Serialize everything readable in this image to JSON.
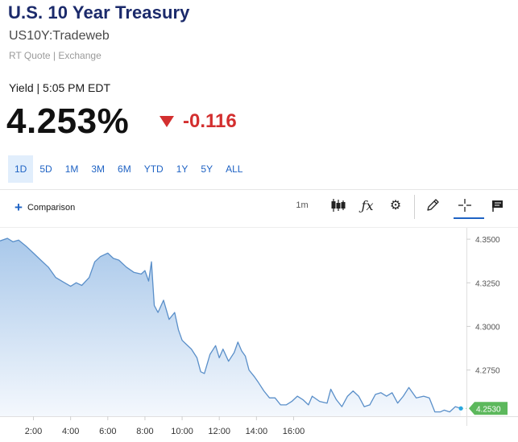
{
  "header": {
    "title": "U.S. 10 Year Treasury",
    "symbol": "US10Y:Tradeweb",
    "quote_source": "RT Quote | Exchange"
  },
  "quote": {
    "label": "Yield | 5:05 PM EDT",
    "value": "4.253%",
    "change": "-0.116",
    "direction": "down",
    "change_color": "#d32f2f"
  },
  "ranges": {
    "items": [
      "1D",
      "5D",
      "1M",
      "3M",
      "6M",
      "YTD",
      "1Y",
      "5Y",
      "ALL"
    ],
    "active": "1D"
  },
  "toolbar": {
    "comparison_label": "Comparison",
    "interval_label": "1m",
    "icons": [
      "candlestick-icon",
      "fx-icon",
      "gear-icon",
      "pencil-icon",
      "crosshair-icon",
      "annotation-flag-icon"
    ]
  },
  "chart_data": {
    "type": "area",
    "x_ticks": [
      "2:00",
      "4:00",
      "6:00",
      "8:00",
      "10:00",
      "12:00",
      "14:00",
      "16:00"
    ],
    "y_ticks": [
      "4.3500",
      "4.3250",
      "4.3000",
      "4.2750"
    ],
    "ylim": [
      4.2485,
      4.3565
    ],
    "xlim": [
      0.2,
      25.3
    ],
    "last_value_label": "4.2530",
    "last_value": 4.253,
    "colors": {
      "line": "#5a8fc9",
      "fill_top": "#a9c8ea",
      "fill_bottom": "#f4f8fd",
      "price_tag": "#5cb85c",
      "last_dot": "#2aa8e0"
    },
    "series": [
      {
        "x": [
          0.2,
          0.6,
          0.9,
          1.2,
          1.6,
          2.0,
          2.4,
          2.8,
          3.2,
          3.6,
          4.0,
          4.3,
          4.6,
          5.0,
          5.3,
          5.6,
          6.0,
          6.3,
          6.6,
          7.0,
          7.4,
          7.8,
          8.0,
          8.2,
          8.35,
          8.5,
          8.7,
          9.0,
          9.3,
          9.6,
          9.8,
          10.0,
          10.2,
          10.5,
          10.8,
          11.0,
          11.2,
          11.5,
          11.8,
          12.0,
          12.2,
          12.5,
          12.8,
          13.0,
          13.2,
          13.4,
          13.6,
          13.9,
          14.1,
          14.4,
          14.7,
          15.0,
          15.3,
          15.6,
          15.9,
          16.2,
          16.5,
          16.8,
          17.0,
          17.4,
          17.8,
          18.0,
          18.3,
          18.6,
          18.9,
          19.2,
          19.5,
          19.8,
          20.1,
          20.4,
          20.7,
          21.0,
          21.3,
          21.6,
          21.9,
          22.2,
          22.6,
          23.0,
          23.3,
          23.6,
          23.9,
          24.1,
          24.4,
          24.7,
          25.0
        ],
        "values": [
          4.349,
          4.3505,
          4.3485,
          4.3495,
          4.346,
          4.342,
          4.338,
          4.334,
          4.328,
          4.3255,
          4.323,
          4.325,
          4.3235,
          4.328,
          4.337,
          4.34,
          4.342,
          4.339,
          4.338,
          4.334,
          4.331,
          4.33,
          4.332,
          4.326,
          4.337,
          4.312,
          4.308,
          4.315,
          4.304,
          4.308,
          4.298,
          4.292,
          4.29,
          4.287,
          4.282,
          4.274,
          4.273,
          4.284,
          4.289,
          4.282,
          4.287,
          4.28,
          4.285,
          4.291,
          4.286,
          4.283,
          4.275,
          4.271,
          4.268,
          4.263,
          4.259,
          4.259,
          4.255,
          4.255,
          4.257,
          4.26,
          4.258,
          4.255,
          4.26,
          4.257,
          4.256,
          4.264,
          4.258,
          4.254,
          4.26,
          4.263,
          4.26,
          4.254,
          4.255,
          4.261,
          4.262,
          4.26,
          4.262,
          4.256,
          4.26,
          4.265,
          4.259,
          4.26,
          4.259,
          4.251,
          4.251,
          4.252,
          4.251,
          4.254,
          4.253
        ]
      }
    ]
  }
}
